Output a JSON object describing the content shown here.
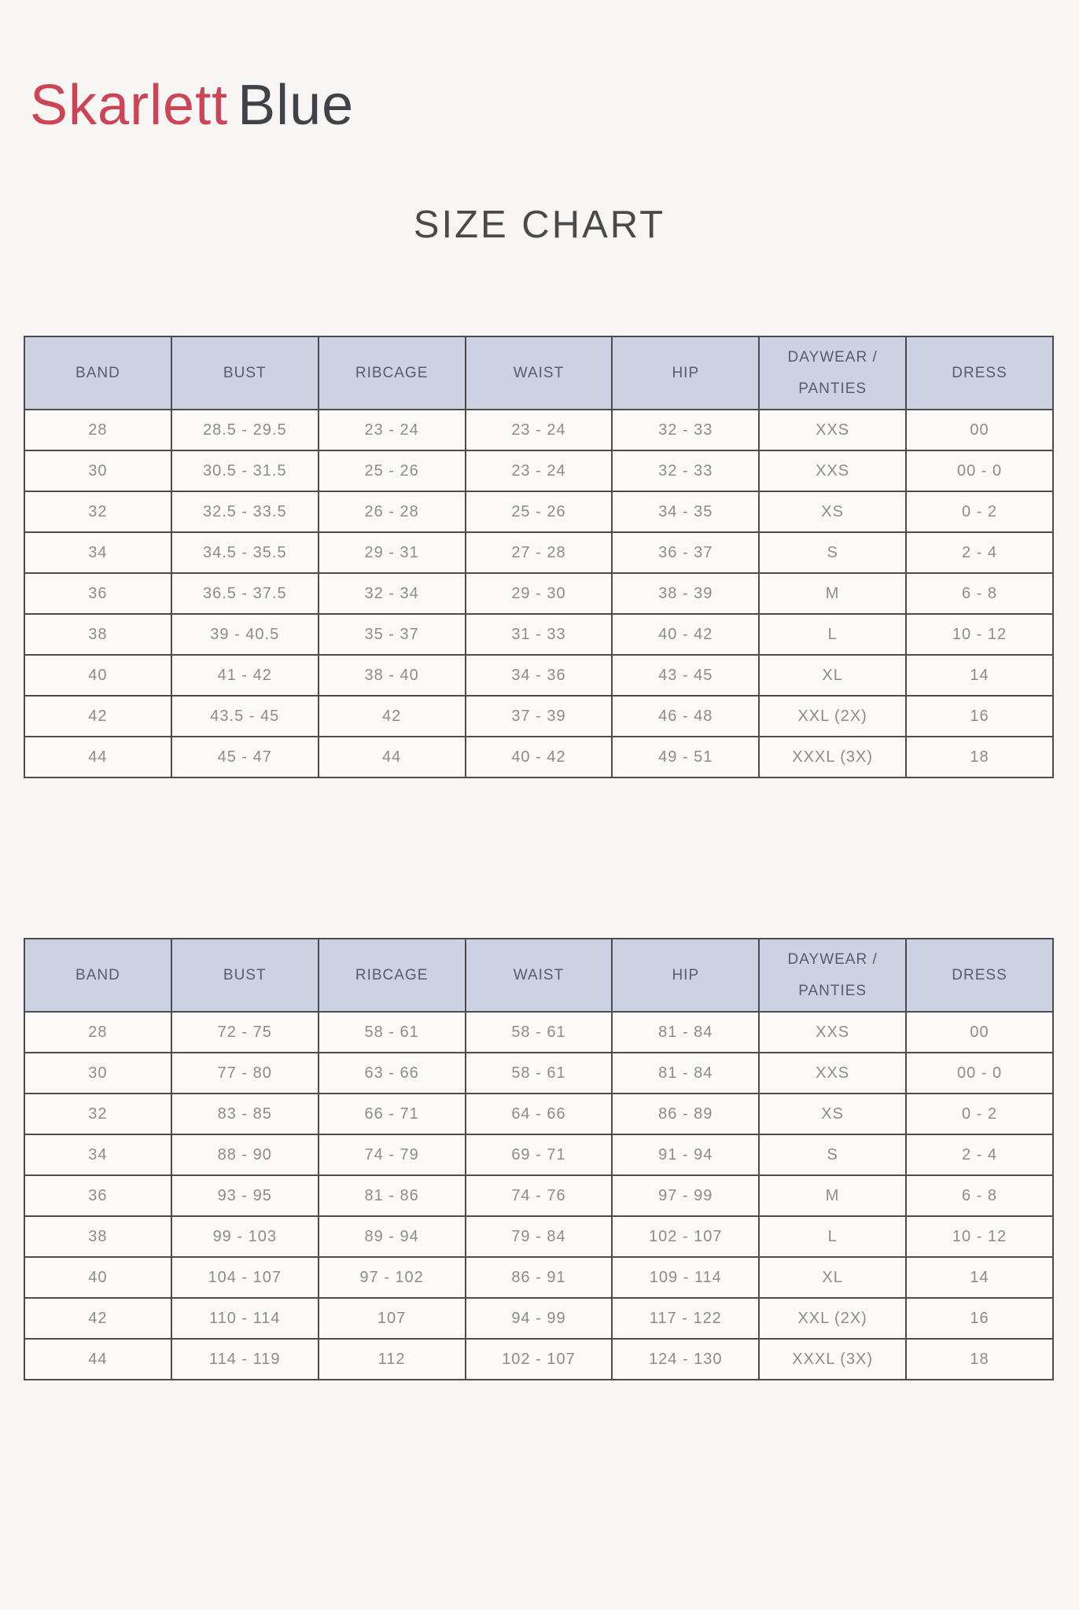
{
  "brand": {
    "name_primary": "Skarlett",
    "name_secondary": "Blue",
    "primary_color": "#cc4557",
    "secondary_color": "#3f4247"
  },
  "title": "SIZE CHART",
  "tables": [
    {
      "columns": [
        "BAND",
        "BUST",
        "RIBCAGE",
        "WAIST",
        "HIP",
        "DAYWEAR / PANTIES",
        "DRESS"
      ],
      "rows": [
        [
          "28",
          "28.5 - 29.5",
          "23 - 24",
          "23 - 24",
          "32 - 33",
          "XXS",
          "00"
        ],
        [
          "30",
          "30.5 - 31.5",
          "25 - 26",
          "23 - 24",
          "32 - 33",
          "XXS",
          "00 - 0"
        ],
        [
          "32",
          "32.5 - 33.5",
          "26 - 28",
          "25 - 26",
          "34 - 35",
          "XS",
          "0 - 2"
        ],
        [
          "34",
          "34.5 - 35.5",
          "29 - 31",
          "27 - 28",
          "36 - 37",
          "S",
          "2 - 4"
        ],
        [
          "36",
          "36.5 - 37.5",
          "32 - 34",
          "29 - 30",
          "38 - 39",
          "M",
          "6 - 8"
        ],
        [
          "38",
          "39 - 40.5",
          "35 - 37",
          "31 - 33",
          "40 - 42",
          "L",
          "10 - 12"
        ],
        [
          "40",
          "41 - 42",
          "38 - 40",
          "34 - 36",
          "43 - 45",
          "XL",
          "14"
        ],
        [
          "42",
          "43.5 - 45",
          "42",
          "37 - 39",
          "46 - 48",
          "XXL (2X)",
          "16"
        ],
        [
          "44",
          "45 - 47",
          "44",
          "40 - 42",
          "49 - 51",
          "XXXL (3X)",
          "18"
        ]
      ]
    },
    {
      "columns": [
        "BAND",
        "BUST",
        "RIBCAGE",
        "WAIST",
        "HIP",
        "DAYWEAR / PANTIES",
        "DRESS"
      ],
      "rows": [
        [
          "28",
          "72 - 75",
          "58 - 61",
          "58 - 61",
          "81 - 84",
          "XXS",
          "00"
        ],
        [
          "30",
          "77 - 80",
          "63 - 66",
          "58 - 61",
          "81 - 84",
          "XXS",
          "00 - 0"
        ],
        [
          "32",
          "83 - 85",
          "66 - 71",
          "64 - 66",
          "86 - 89",
          "XS",
          "0 - 2"
        ],
        [
          "34",
          "88 - 90",
          "74 - 79",
          "69 - 71",
          "91 - 94",
          "S",
          "2 - 4"
        ],
        [
          "36",
          "93 - 95",
          "81 - 86",
          "74 - 76",
          "97 - 99",
          "M",
          "6 - 8"
        ],
        [
          "38",
          "99 - 103",
          "89 - 94",
          "79 - 84",
          "102 - 107",
          "L",
          "10 - 12"
        ],
        [
          "40",
          "104 - 107",
          "97 - 102",
          "86 - 91",
          "109 - 114",
          "XL",
          "14"
        ],
        [
          "42",
          "110 - 114",
          "107",
          "94 - 99",
          "117 - 122",
          "XXL (2X)",
          "16"
        ],
        [
          "44",
          "114 - 119",
          "112",
          "102 - 107",
          "124 - 130",
          "XXXL (3X)",
          "18"
        ]
      ]
    }
  ],
  "colors": {
    "page_bg": "#f7f6f4",
    "header_bg": "#ccd2e3",
    "border": "#4c4c4c",
    "header_text": "#565c6a",
    "cell_text": "#8c8c8c",
    "title_text": "#4a4a4a"
  }
}
